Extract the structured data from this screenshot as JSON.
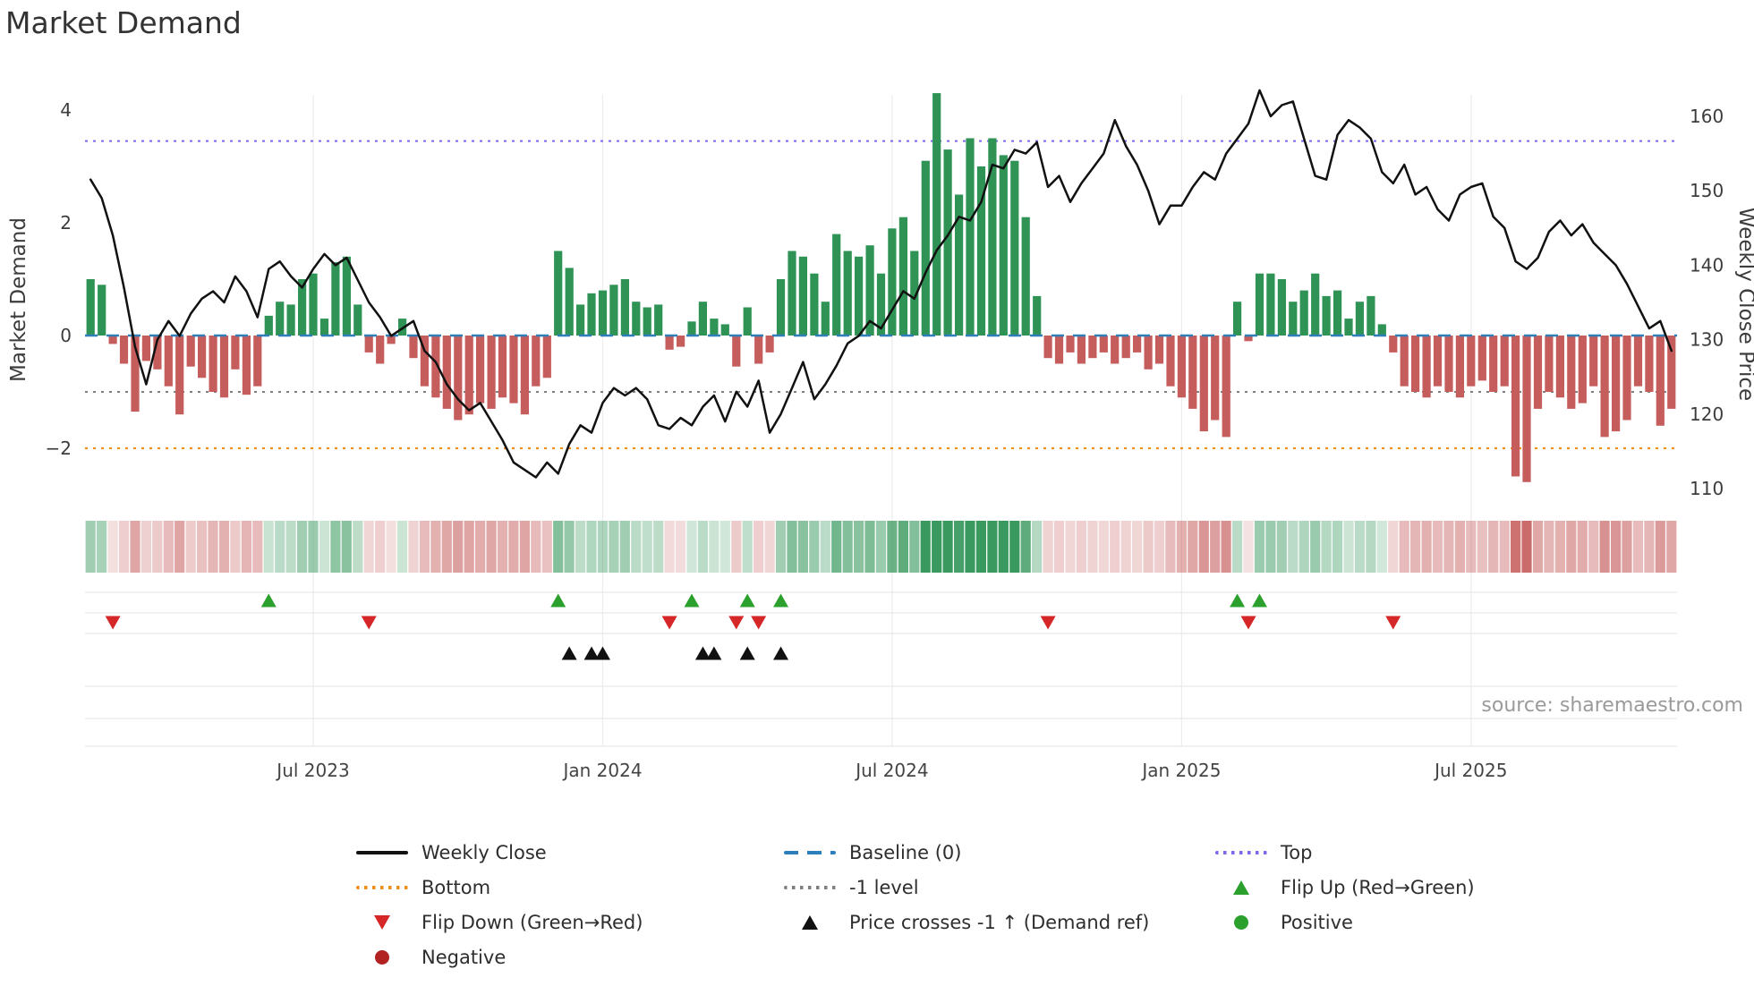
{
  "title": "Market Demand",
  "source": "source: sharemaestro.com",
  "colors": {
    "positive_bar": "#2e9355",
    "negative_bar": "#c65d5d",
    "price_line": "#111111",
    "baseline": "#2e7ebb",
    "top": "#7b68ee",
    "bottom": "#ef8e1b",
    "minus_one": "#7f7f7f",
    "flip_up": "#2ca02c",
    "flip_down": "#d62728",
    "price_cross": "#111111",
    "positive_dot": "#2ca02c",
    "negative_dot": "#b22222",
    "grid": "#ececec",
    "lane_line": "#e3e3e3",
    "heat_green": "46,147,85",
    "heat_red": "198,93,93"
  },
  "chart_data": {
    "type": "bar",
    "title": "Market Demand",
    "legend_position": "bottom",
    "grid": "vertical-light",
    "x_axis": {
      "unit": "week",
      "n_points": 143,
      "tick_indices": [
        20,
        46,
        72,
        98,
        124
      ],
      "tick_labels": [
        "Jul 2023",
        "Jan 2024",
        "Jul 2024",
        "Jan 2025",
        "Jul 2025"
      ]
    },
    "left_axis": {
      "label": "Market Demand",
      "tick_values": [
        4,
        2,
        0,
        -2
      ],
      "tick_labels": [
        "4",
        "2",
        "0",
        "−2"
      ],
      "range": [
        -2.85,
        4.25
      ]
    },
    "right_axis": {
      "label": "Weekly Close Price",
      "tick_values": [
        160,
        150,
        140,
        130,
        120,
        110
      ],
      "tick_labels": [
        "160",
        "150",
        "140",
        "130",
        "120",
        "110"
      ],
      "range": [
        109.0,
        162.7
      ]
    },
    "reference_lines": {
      "top": 3.45,
      "baseline": 0,
      "minus_one": -1,
      "bottom": -2.0
    },
    "series": [
      {
        "name": "Market Demand",
        "type": "bar",
        "axis": "left",
        "values": [
          1.0,
          0.9,
          -0.15,
          -0.5,
          -1.35,
          -0.45,
          -0.6,
          -0.9,
          -1.4,
          -0.55,
          -0.75,
          -1.0,
          -1.1,
          -0.6,
          -1.05,
          -0.9,
          0.35,
          0.6,
          0.55,
          1.0,
          1.1,
          0.3,
          1.3,
          1.4,
          0.55,
          -0.3,
          -0.5,
          -0.15,
          0.3,
          -0.4,
          -0.9,
          -1.1,
          -1.3,
          -1.5,
          -1.4,
          -1.2,
          -1.3,
          -1.1,
          -1.2,
          -1.4,
          -0.9,
          -0.75,
          1.5,
          1.2,
          0.55,
          0.75,
          0.8,
          0.9,
          1.0,
          0.6,
          0.5,
          0.55,
          -0.25,
          -0.2,
          0.25,
          0.6,
          0.3,
          0.2,
          -0.55,
          0.5,
          -0.5,
          -0.3,
          1.0,
          1.5,
          1.4,
          1.1,
          0.6,
          1.8,
          1.5,
          1.4,
          1.6,
          1.1,
          1.9,
          2.1,
          1.5,
          3.1,
          4.3,
          3.3,
          2.5,
          3.5,
          3.0,
          3.5,
          3.2,
          3.1,
          2.1,
          0.7,
          -0.4,
          -0.5,
          -0.3,
          -0.5,
          -0.4,
          -0.3,
          -0.5,
          -0.4,
          -0.3,
          -0.6,
          -0.5,
          -0.9,
          -1.1,
          -1.3,
          -1.7,
          -1.5,
          -1.8,
          0.6,
          -0.1,
          1.1,
          1.1,
          1.0,
          0.6,
          0.8,
          1.1,
          0.7,
          0.8,
          0.3,
          0.6,
          0.7,
          0.2,
          -0.3,
          -0.9,
          -1.0,
          -1.1,
          -0.9,
          -1.0,
          -1.1,
          -0.9,
          -0.8,
          -1.0,
          -0.9,
          -2.5,
          -2.6,
          -1.3,
          -1.0,
          -1.1,
          -1.3,
          -1.2,
          -0.9,
          -1.8,
          -1.7,
          -1.5,
          -0.9,
          -1.0,
          -1.6,
          -1.3
        ]
      },
      {
        "name": "Weekly Close",
        "type": "line",
        "axis": "right",
        "values": [
          151.5,
          149,
          144,
          137,
          129,
          124,
          130,
          132.5,
          130.5,
          133.5,
          135.5,
          136.5,
          135,
          138.5,
          136.5,
          133,
          139.5,
          140.5,
          138.5,
          137,
          139.5,
          141.5,
          140,
          141,
          138,
          135,
          133,
          130.5,
          131.5,
          132.5,
          128.5,
          127,
          124,
          122,
          120.5,
          121.5,
          119,
          116.5,
          113.5,
          112.5,
          111.5,
          113.5,
          112,
          116,
          118.5,
          117.5,
          121.5,
          123.5,
          122.5,
          123.5,
          122,
          118.5,
          118,
          119.5,
          118.5,
          121,
          122.5,
          119,
          123,
          121,
          124.5,
          117.5,
          120,
          123.5,
          127,
          122,
          124,
          126.5,
          129.5,
          130.5,
          132.5,
          131.5,
          134,
          136.5,
          135.5,
          139,
          142,
          144,
          146.5,
          146,
          148.5,
          153.5,
          153,
          155.5,
          155,
          156.5,
          150.5,
          152,
          148.5,
          151,
          153,
          155,
          159.5,
          156,
          153.5,
          150,
          145.5,
          148,
          148,
          150.5,
          152.5,
          151.5,
          155,
          157,
          159,
          163.5,
          160,
          161.5,
          162,
          157,
          152,
          151.5,
          157.5,
          159.5,
          158.5,
          157,
          152.5,
          151,
          153.5,
          149.5,
          150.5,
          147.5,
          146,
          149.5,
          150.5,
          151,
          146.5,
          145,
          140.5,
          139.5,
          141,
          144.5,
          146,
          144,
          145.5,
          143,
          141.5,
          140,
          137.5,
          134.5,
          131.5,
          132.5,
          128.5
        ]
      }
    ],
    "heatmap_strip": {
      "values_source": "Market Demand",
      "positive_color": "green-scale",
      "negative_color": "red-scale"
    },
    "markers": {
      "flip_up": {
        "label": "Flip Up (Red→Green)",
        "week_indices": [
          16,
          42,
          54,
          59,
          62,
          103,
          105
        ]
      },
      "flip_down": {
        "label": "Flip Down (Green→Red)",
        "week_indices": [
          2,
          25,
          52,
          58,
          60,
          86,
          104,
          117
        ]
      },
      "price_cross_minus_one": {
        "label": "Price crosses -1 ↑ (Demand ref)",
        "week_indices": [
          43,
          45,
          46,
          55,
          56,
          59,
          62
        ]
      }
    }
  },
  "legend": {
    "items": [
      {
        "label": "Weekly Close",
        "swatch": "line-solid",
        "color": "#111111"
      },
      {
        "label": "Baseline (0)",
        "swatch": "line-dashed",
        "color": "#2e7ebb"
      },
      {
        "label": "Top",
        "swatch": "line-dotted",
        "color": "#7b68ee"
      },
      {
        "label": "Bottom",
        "swatch": "line-dotted",
        "color": "#ef8e1b"
      },
      {
        "label": "-1 level",
        "swatch": "line-dotted",
        "color": "#7f7f7f"
      },
      {
        "label": "Flip Up (Red→Green)",
        "swatch": "triangle-up",
        "color": "#2ca02c"
      },
      {
        "label": "Flip Down (Green→Red)",
        "swatch": "triangle-down",
        "color": "#d62728"
      },
      {
        "label": "Price crosses -1 ↑ (Demand ref)",
        "swatch": "triangle-up",
        "color": "#111111"
      },
      {
        "label": "Positive",
        "swatch": "circle",
        "color": "#2ca02c"
      },
      {
        "label": "Negative",
        "swatch": "circle",
        "color": "#b22222"
      }
    ]
  }
}
